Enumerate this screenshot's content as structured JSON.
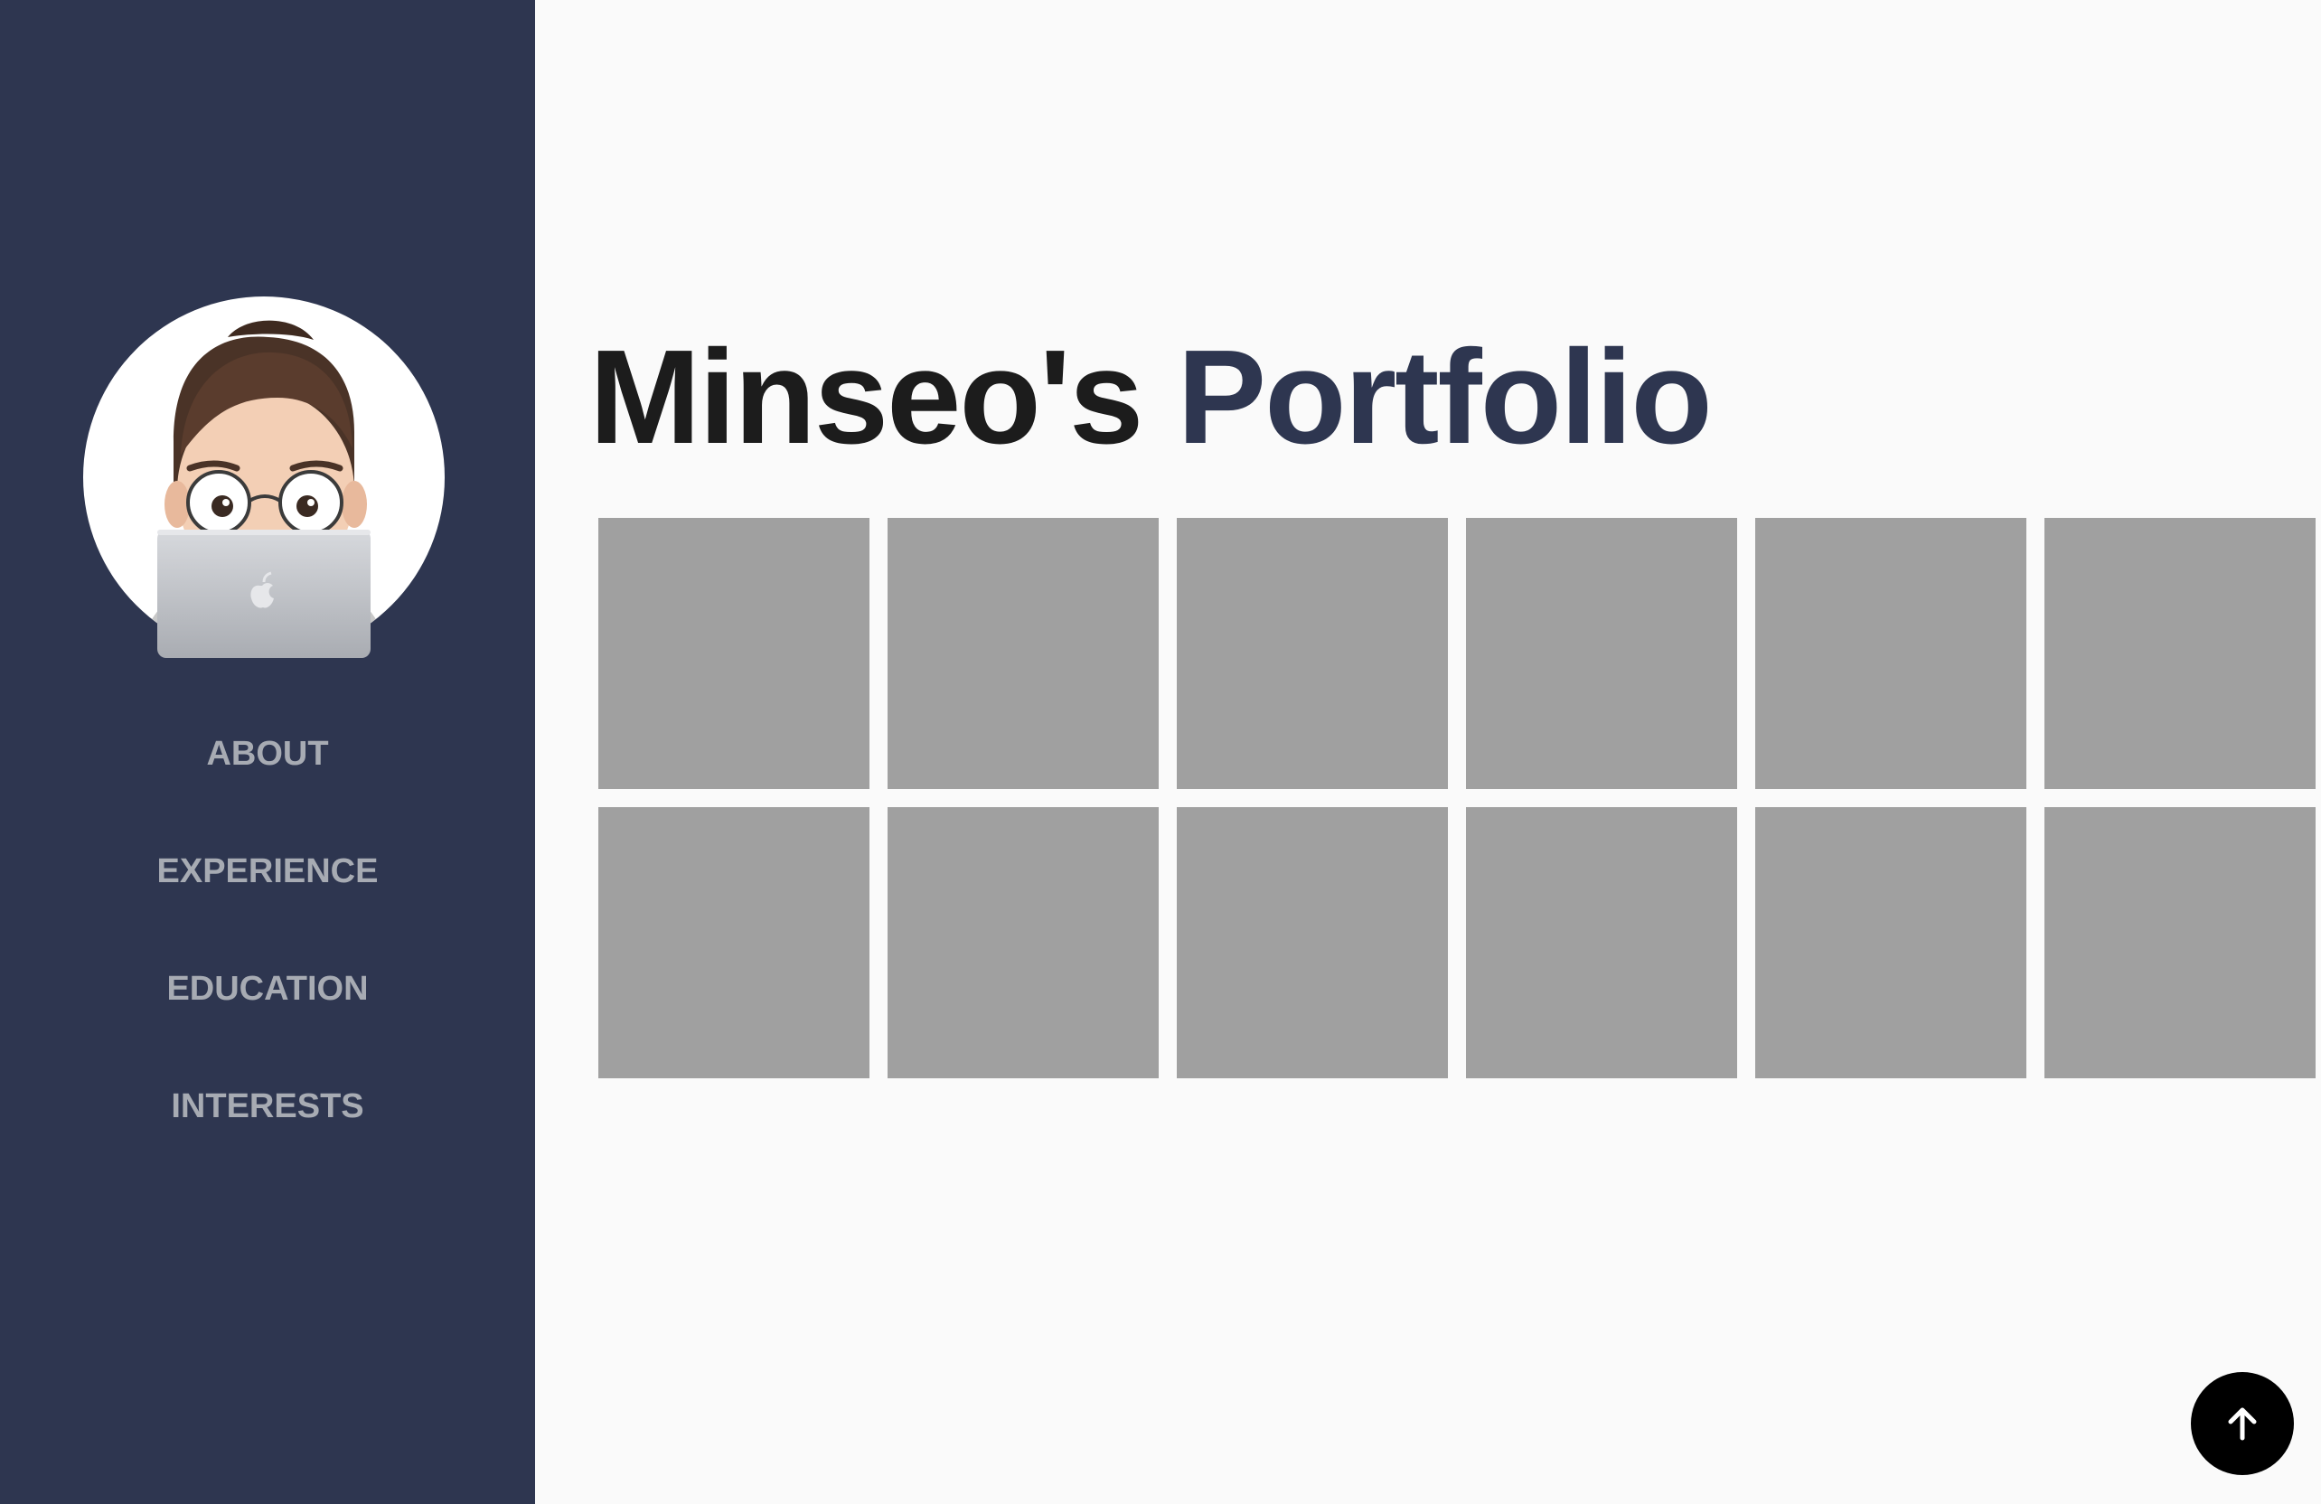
{
  "sidebar": {
    "avatar": {
      "description_icon": "memoji-avatar-with-laptop"
    },
    "nav": [
      {
        "label": "ABOUT"
      },
      {
        "label": "EXPERIENCE"
      },
      {
        "label": "EDUCATION"
      },
      {
        "label": "INTERESTS"
      }
    ],
    "background_color": "#2e3650",
    "nav_text_color": "#a7abb3"
  },
  "main": {
    "title": {
      "part1": "Minseo's",
      "part2": "Portfolio",
      "part1_color": "#1c1c1c",
      "part2_color": "#2e3650"
    },
    "gallery": {
      "rows": 2,
      "columns": 6,
      "tile_color": "#a0a0a0"
    }
  },
  "scroll_top_button": {
    "icon": "arrow-up-icon",
    "color": "#000000"
  }
}
